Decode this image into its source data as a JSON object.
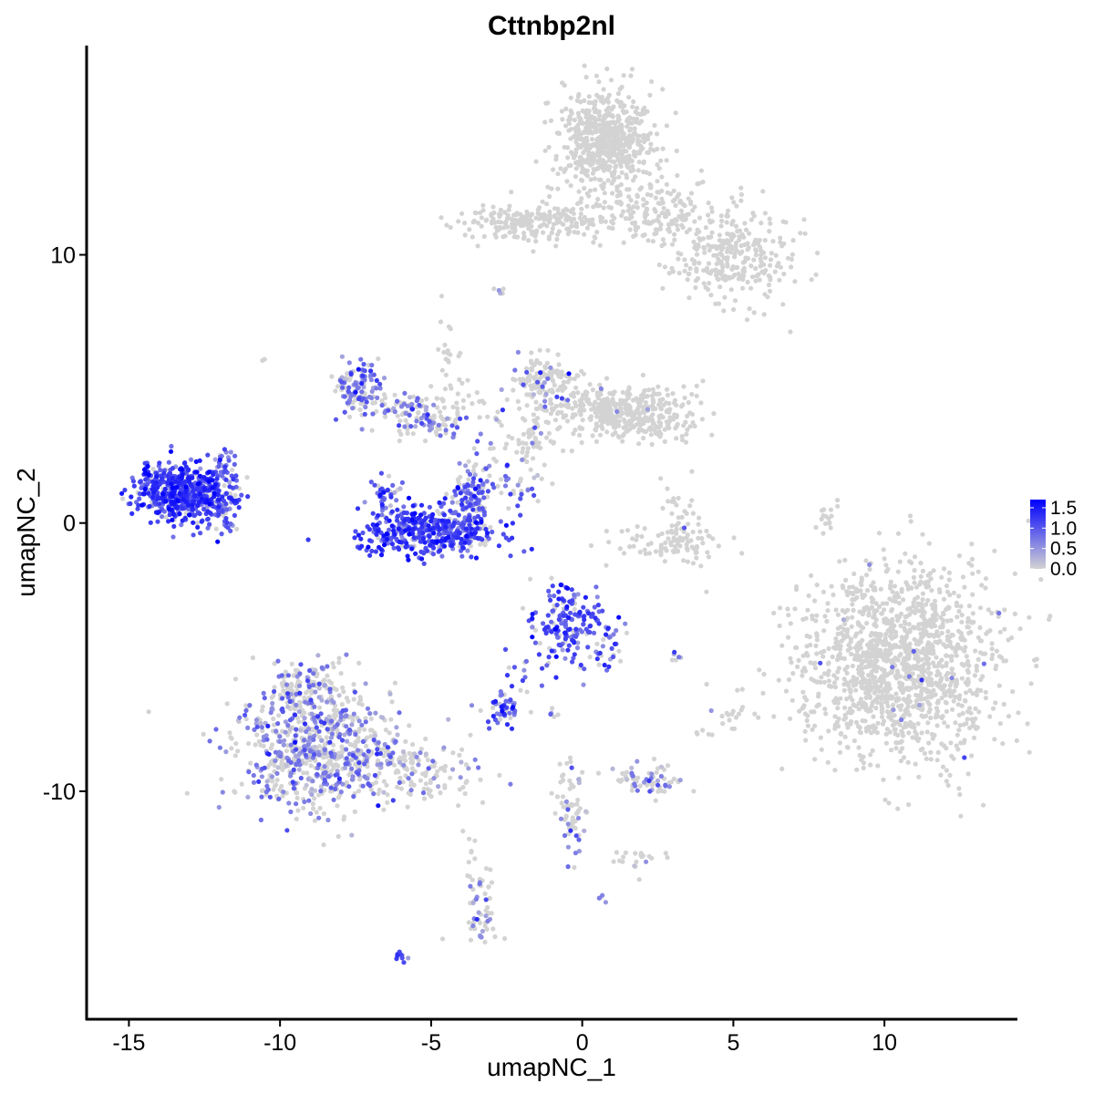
{
  "chart_data": {
    "type": "scatter",
    "title": "Cttnbp2nl",
    "xlabel": "umapNC_1",
    "ylabel": "umapNC_2",
    "xlim": [
      -16.4,
      14.4
    ],
    "ylim": [
      -18.5,
      17.8
    ],
    "x_ticks": [
      -15,
      -10,
      -5,
      0,
      5,
      10
    ],
    "x_tick_labels": [
      "-15",
      "-10",
      "-5",
      "0",
      "5",
      "10"
    ],
    "y_ticks": [
      -10,
      0,
      10
    ],
    "y_tick_labels": [
      "-10",
      "0",
      "10"
    ],
    "grid": false,
    "color_scale": {
      "low_color": "#d3d3d3",
      "high_color": "#0000ff",
      "min": 0.0,
      "max": 1.7,
      "ticks": [
        0.0,
        0.5,
        1.0,
        1.5
      ],
      "tick_labels": [
        "0.0",
        "0.5",
        "1.0",
        "1.5"
      ],
      "legend_position": "right"
    },
    "clusters": [
      {
        "cx": 10.5,
        "cy": -5.2,
        "sx": 1.6,
        "sy": 1.8,
        "n": 1400,
        "expr_frac": 0.01,
        "expr_mean": 0.8
      },
      {
        "cx": 0.8,
        "cy": 14.3,
        "sx": 0.8,
        "sy": 0.9,
        "n": 600,
        "expr_frac": 0.0,
        "expr_mean": 0.0
      },
      {
        "cx": -1.5,
        "cy": 11.2,
        "sx": 1.2,
        "sy": 0.35,
        "n": 220,
        "expr_frac": 0.0,
        "expr_mean": 0.0
      },
      {
        "cx": 2.4,
        "cy": 11.6,
        "sx": 1.3,
        "sy": 0.6,
        "n": 180,
        "expr_frac": 0.005,
        "expr_mean": 0.7
      },
      {
        "cx": 5.0,
        "cy": 9.9,
        "sx": 1.0,
        "sy": 0.9,
        "n": 280,
        "expr_frac": 0.0,
        "expr_mean": 0.0
      },
      {
        "cx": -13.3,
        "cy": 1.2,
        "sx": 0.75,
        "sy": 0.55,
        "n": 520,
        "expr_frac": 0.92,
        "expr_mean": 1.15
      },
      {
        "cx": -12.0,
        "cy": 0.6,
        "sx": 0.45,
        "sy": 0.5,
        "n": 110,
        "expr_frac": 0.8,
        "expr_mean": 0.9
      },
      {
        "cx": -11.8,
        "cy": 2.3,
        "sx": 0.2,
        "sy": 0.35,
        "n": 25,
        "expr_frac": 0.9,
        "expr_mean": 0.8
      },
      {
        "cx": -5.0,
        "cy": -0.3,
        "sx": 1.1,
        "sy": 0.45,
        "n": 420,
        "expr_frac": 0.9,
        "expr_mean": 1.1
      },
      {
        "cx": -3.6,
        "cy": 1.0,
        "sx": 0.35,
        "sy": 0.7,
        "n": 120,
        "expr_frac": 0.7,
        "expr_mean": 0.85
      },
      {
        "cx": -6.5,
        "cy": 1.0,
        "sx": 0.25,
        "sy": 0.45,
        "n": 40,
        "expr_frac": 0.6,
        "expr_mean": 0.8
      },
      {
        "cx": -7.4,
        "cy": 5.1,
        "sx": 0.35,
        "sy": 0.45,
        "n": 110,
        "expr_frac": 0.6,
        "expr_mean": 0.75
      },
      {
        "cx": -6.0,
        "cy": 4.2,
        "sx": 0.8,
        "sy": 0.35,
        "n": 90,
        "expr_frac": 0.4,
        "expr_mean": 0.7
      },
      {
        "cx": -4.8,
        "cy": 3.6,
        "sx": 0.5,
        "sy": 0.25,
        "n": 50,
        "expr_frac": 0.5,
        "expr_mean": 0.7
      },
      {
        "cx": -4.5,
        "cy": 6.0,
        "sx": 0.3,
        "sy": 0.9,
        "n": 25,
        "expr_frac": 0.0,
        "expr_mean": 0.0
      },
      {
        "cx": -3.9,
        "cy": 4.5,
        "sx": 0.4,
        "sy": 0.6,
        "n": 20,
        "expr_frac": 0.1,
        "expr_mean": 0.6
      },
      {
        "cx": -1.2,
        "cy": 5.2,
        "sx": 0.55,
        "sy": 0.6,
        "n": 140,
        "expr_frac": 0.12,
        "expr_mean": 0.75
      },
      {
        "cx": 0.8,
        "cy": 4.2,
        "sx": 1.0,
        "sy": 0.45,
        "n": 260,
        "expr_frac": 0.02,
        "expr_mean": 0.7
      },
      {
        "cx": 2.3,
        "cy": 3.9,
        "sx": 0.8,
        "sy": 0.5,
        "n": 150,
        "expr_frac": 0.0,
        "expr_mean": 0.0
      },
      {
        "cx": -1.8,
        "cy": 3.2,
        "sx": 0.6,
        "sy": 0.6,
        "n": 60,
        "expr_frac": 0.1,
        "expr_mean": 0.7
      },
      {
        "cx": -2.4,
        "cy": 1.5,
        "sx": 0.3,
        "sy": 0.6,
        "n": 15,
        "expr_frac": 0.4,
        "expr_mean": 0.7
      },
      {
        "cx": -1.8,
        "cy": 1.2,
        "sx": 0.5,
        "sy": 0.25,
        "n": 18,
        "expr_frac": 0.5,
        "expr_mean": 0.8
      },
      {
        "cx": 3.0,
        "cy": -0.8,
        "sx": 1.0,
        "sy": 0.35,
        "n": 90,
        "expr_frac": 0.03,
        "expr_mean": 0.7
      },
      {
        "cx": 3.3,
        "cy": 0.5,
        "sx": 0.3,
        "sy": 0.6,
        "n": 30,
        "expr_frac": 0.05,
        "expr_mean": 0.7
      },
      {
        "cx": 8.1,
        "cy": 0.2,
        "sx": 0.15,
        "sy": 0.5,
        "n": 15,
        "expr_frac": 0.0,
        "expr_mean": 0.0
      },
      {
        "cx": -0.5,
        "cy": -3.8,
        "sx": 0.55,
        "sy": 0.75,
        "n": 180,
        "expr_frac": 0.85,
        "expr_mean": 1.05
      },
      {
        "cx": 0.9,
        "cy": -4.6,
        "sx": 0.3,
        "sy": 0.6,
        "n": 30,
        "expr_frac": 0.8,
        "expr_mean": 0.9
      },
      {
        "cx": -2.6,
        "cy": -6.9,
        "sx": 0.3,
        "sy": 0.3,
        "n": 50,
        "expr_frac": 0.85,
        "expr_mean": 1.0
      },
      {
        "cx": -2.0,
        "cy": -6.0,
        "sx": 0.25,
        "sy": 0.5,
        "n": 12,
        "expr_frac": 0.8,
        "expr_mean": 0.9
      },
      {
        "cx": -8.8,
        "cy": -8.4,
        "sx": 1.3,
        "sy": 1.2,
        "n": 760,
        "expr_frac": 0.45,
        "expr_mean": 0.65
      },
      {
        "cx": -9.2,
        "cy": -6.2,
        "sx": 0.6,
        "sy": 0.6,
        "n": 110,
        "expr_frac": 0.35,
        "expr_mean": 0.6
      },
      {
        "cx": -5.3,
        "cy": -9.2,
        "sx": 1.0,
        "sy": 0.55,
        "n": 130,
        "expr_frac": 0.3,
        "expr_mean": 0.6
      },
      {
        "cx": -3.3,
        "cy": -14.3,
        "sx": 0.25,
        "sy": 0.7,
        "n": 55,
        "expr_frac": 0.3,
        "expr_mean": 0.6
      },
      {
        "cx": -3.8,
        "cy": -12.3,
        "sx": 0.15,
        "sy": 0.4,
        "n": 8,
        "expr_frac": 0.0,
        "expr_mean": 0.0
      },
      {
        "cx": -6.0,
        "cy": -16.2,
        "sx": 0.12,
        "sy": 0.1,
        "n": 10,
        "expr_frac": 0.9,
        "expr_mean": 1.1
      },
      {
        "cx": 2.2,
        "cy": -9.6,
        "sx": 0.6,
        "sy": 0.3,
        "n": 70,
        "expr_frac": 0.35,
        "expr_mean": 0.6
      },
      {
        "cx": -0.4,
        "cy": -10.2,
        "sx": 0.25,
        "sy": 0.8,
        "n": 40,
        "expr_frac": 0.1,
        "expr_mean": 0.6
      },
      {
        "cx": -0.2,
        "cy": -11.6,
        "sx": 0.25,
        "sy": 0.5,
        "n": 25,
        "expr_frac": 0.5,
        "expr_mean": 0.6
      },
      {
        "cx": 1.8,
        "cy": -12.5,
        "sx": 0.55,
        "sy": 0.3,
        "n": 20,
        "expr_frac": 0.3,
        "expr_mean": 0.8
      },
      {
        "cx": 5.0,
        "cy": -7.3,
        "sx": 0.3,
        "sy": 0.35,
        "n": 15,
        "expr_frac": 0.1,
        "expr_mean": 0.6
      },
      {
        "cx": 3.2,
        "cy": -5.0,
        "sx": 0.2,
        "sy": 0.1,
        "n": 6,
        "expr_frac": 0.5,
        "expr_mean": 0.6
      },
      {
        "cx": 0.6,
        "cy": -13.9,
        "sx": 0.1,
        "sy": 0.1,
        "n": 4,
        "expr_frac": 0.8,
        "expr_mean": 0.7
      },
      {
        "cx": -2.7,
        "cy": 8.6,
        "sx": 0.15,
        "sy": 0.1,
        "n": 5,
        "expr_frac": 0.3,
        "expr_mean": 0.5
      },
      {
        "cx": -0.9,
        "cy": -7.2,
        "sx": 0.15,
        "sy": 0.15,
        "n": 5,
        "expr_frac": 0.6,
        "expr_mean": 0.8
      },
      {
        "cx": 4.1,
        "cy": -7.8,
        "sx": 0.2,
        "sy": 0.15,
        "n": 5,
        "expr_frac": 0.0,
        "expr_mean": 0.0
      },
      {
        "cx": -10.5,
        "cy": 6.1,
        "sx": 0.05,
        "sy": 0.05,
        "n": 2,
        "expr_frac": 0.0,
        "expr_mean": 0.0
      },
      {
        "cx": 6.8,
        "cy": 7.1,
        "sx": 0.05,
        "sy": 0.05,
        "n": 1,
        "expr_frac": 0.0,
        "expr_mean": 0.0
      },
      {
        "cx": 5.0,
        "cy": 8.0,
        "sx": 0.05,
        "sy": 0.05,
        "n": 1,
        "expr_frac": 0.0,
        "expr_mean": 0.0
      },
      {
        "cx": -4.7,
        "cy": -15.5,
        "sx": 0.05,
        "sy": 0.05,
        "n": 1,
        "expr_frac": 0.0,
        "expr_mean": 0.0
      }
    ]
  }
}
